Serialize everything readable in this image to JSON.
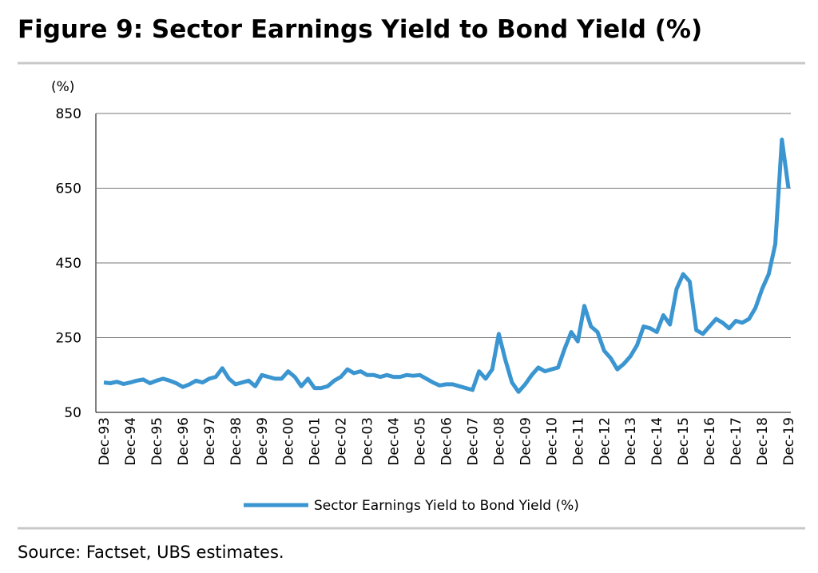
{
  "chart_data": {
    "type": "line",
    "title": "Figure 9: Sector Earnings Yield to Bond Yield (%)",
    "y_axis_label": "(%)",
    "source": "Source:  Factset, UBS estimates.",
    "categories": [
      "Dec-93",
      null,
      null,
      null,
      "Dec-94",
      null,
      null,
      null,
      "Dec-95",
      null,
      null,
      null,
      "Dec-96",
      null,
      null,
      null,
      "Dec-97",
      null,
      null,
      null,
      "Dec-98",
      null,
      null,
      null,
      "Dec-99",
      null,
      null,
      null,
      "Dec-00",
      null,
      null,
      null,
      "Dec-01",
      null,
      null,
      null,
      "Dec-02",
      null,
      null,
      null,
      "Dec-03",
      null,
      null,
      null,
      "Dec-04",
      null,
      null,
      null,
      "Dec-05",
      null,
      null,
      null,
      "Dec-06",
      null,
      null,
      null,
      "Dec-07",
      null,
      null,
      null,
      "Dec-08",
      null,
      null,
      null,
      "Dec-09",
      null,
      null,
      null,
      "Dec-10",
      null,
      null,
      null,
      "Dec-11",
      null,
      null,
      null,
      "Dec-12",
      null,
      null,
      null,
      "Dec-13",
      null,
      null,
      null,
      "Dec-14",
      null,
      null,
      null,
      "Dec-15",
      null,
      null,
      null,
      "Dec-16",
      null,
      null,
      null,
      "Dec-17",
      null,
      null,
      null,
      "Dec-18",
      null,
      null,
      null,
      "Dec-19"
    ],
    "series": [
      {
        "name": "Sector Earnings Yield to Bond Yield (%)",
        "color": "#3a95d0",
        "values": [
          130,
          128,
          132,
          126,
          130,
          135,
          138,
          128,
          135,
          140,
          135,
          128,
          118,
          125,
          135,
          130,
          140,
          145,
          168,
          140,
          125,
          130,
          135,
          120,
          150,
          145,
          140,
          140,
          160,
          145,
          120,
          140,
          115,
          115,
          120,
          135,
          145,
          165,
          155,
          160,
          150,
          150,
          145,
          150,
          145,
          145,
          150,
          148,
          150,
          140,
          130,
          122,
          125,
          125,
          120,
          115,
          110,
          160,
          140,
          165,
          260,
          190,
          130,
          105,
          125,
          150,
          170,
          160,
          165,
          170,
          220,
          265,
          240,
          335,
          280,
          265,
          215,
          195,
          165,
          180,
          200,
          230,
          280,
          275,
          265,
          310,
          285,
          380,
          420,
          400,
          270,
          260,
          280,
          300,
          290,
          275,
          295,
          290,
          300,
          330,
          380,
          420,
          500,
          780,
          650
        ]
      }
    ],
    "ylim": [
      50,
      850
    ],
    "yticks": [
      50,
      250,
      450,
      650,
      850
    ],
    "grid": true
  }
}
